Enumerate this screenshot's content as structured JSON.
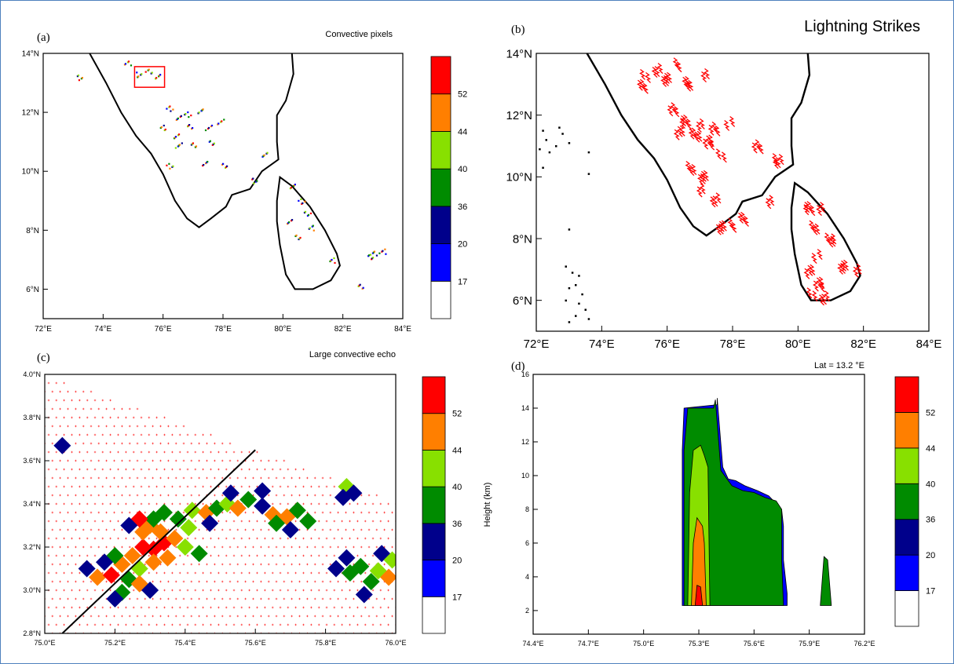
{
  "colors": {
    "frame": "#4f81bd",
    "scale": [
      "#ffffff",
      "#0000ff",
      "#00008b",
      "#008b00",
      "#88e000",
      "#ff7f00",
      "#ff0000"
    ],
    "lightning": "#ff0000",
    "gridcross": "#ff0000"
  },
  "chart_data": [
    {
      "panel": "(a)",
      "type": "heatmap",
      "title": "Convective pixels",
      "xticks": [
        "72°E",
        "74°E",
        "76°E",
        "78°E",
        "80°E",
        "82°E",
        "84°E"
      ],
      "yticks": [
        "6°N",
        "8°N",
        "10°N",
        "12°N",
        "14°N"
      ],
      "xlim": [
        72,
        84
      ],
      "ylim": [
        5,
        14
      ],
      "colorbar": {
        "labels": [
          "17",
          "20",
          "36",
          "40",
          "44",
          "52"
        ],
        "levels": [
          17,
          20,
          36,
          40,
          44,
          52
        ]
      },
      "highlight_box_lon": [
        75.05,
        76.05
      ],
      "highlight_box_lat": [
        12.85,
        13.55
      ],
      "clusters": [
        {
          "lon": 75.2,
          "lat": 13.3
        },
        {
          "lon": 75.5,
          "lat": 13.4
        },
        {
          "lon": 75.8,
          "lat": 13.25
        },
        {
          "lon": 76.2,
          "lat": 12.15
        },
        {
          "lon": 76.5,
          "lat": 11.85
        },
        {
          "lon": 76.8,
          "lat": 11.95
        },
        {
          "lon": 77.2,
          "lat": 12.05
        },
        {
          "lon": 76.0,
          "lat": 11.5
        },
        {
          "lon": 76.4,
          "lat": 11.2
        },
        {
          "lon": 76.9,
          "lat": 11.55
        },
        {
          "lon": 77.5,
          "lat": 11.5
        },
        {
          "lon": 77.6,
          "lat": 11.0
        },
        {
          "lon": 76.5,
          "lat": 10.9
        },
        {
          "lon": 77.0,
          "lat": 10.9
        },
        {
          "lon": 77.9,
          "lat": 11.7
        },
        {
          "lon": 78.0,
          "lat": 10.2
        },
        {
          "lon": 77.4,
          "lat": 10.3
        },
        {
          "lon": 79.0,
          "lat": 9.7
        },
        {
          "lon": 79.4,
          "lat": 10.6
        },
        {
          "lon": 76.2,
          "lat": 10.2
        },
        {
          "lon": 80.3,
          "lat": 9.5
        },
        {
          "lon": 80.6,
          "lat": 9.0
        },
        {
          "lon": 80.2,
          "lat": 8.3
        },
        {
          "lon": 80.8,
          "lat": 8.6
        },
        {
          "lon": 80.9,
          "lat": 8.1
        },
        {
          "lon": 80.5,
          "lat": 7.8
        },
        {
          "lon": 81.6,
          "lat": 7.0
        },
        {
          "lon": 82.6,
          "lat": 6.1
        },
        {
          "lon": 83.3,
          "lat": 7.3
        },
        {
          "lon": 82.9,
          "lat": 7.1
        },
        {
          "lon": 83.0,
          "lat": 7.25
        },
        {
          "lon": 73.2,
          "lat": 13.2
        },
        {
          "lon": 74.8,
          "lat": 13.7
        }
      ]
    },
    {
      "panel": "(b)",
      "type": "scatter",
      "title": "Lightning Strikes",
      "xticks": [
        "72°E",
        "74°E",
        "76°E",
        "78°E",
        "80°E",
        "82°E",
        "84°E"
      ],
      "yticks": [
        "6°N",
        "8°N",
        "10°N",
        "12°N",
        "14°N"
      ],
      "xlim": [
        72,
        84
      ],
      "ylim": [
        5,
        14
      ],
      "strikes": [
        {
          "lon": 75.3,
          "lat": 13.2
        },
        {
          "lon": 75.6,
          "lat": 13.4
        },
        {
          "lon": 75.9,
          "lat": 13.1
        },
        {
          "lon": 76.2,
          "lat": 13.6
        },
        {
          "lon": 75.2,
          "lat": 12.9
        },
        {
          "lon": 76.6,
          "lat": 13.0
        },
        {
          "lon": 77.1,
          "lat": 13.3
        },
        {
          "lon": 76.1,
          "lat": 12.2
        },
        {
          "lon": 76.5,
          "lat": 11.8
        },
        {
          "lon": 77.0,
          "lat": 11.6
        },
        {
          "lon": 77.4,
          "lat": 11.5
        },
        {
          "lon": 76.8,
          "lat": 11.3
        },
        {
          "lon": 77.8,
          "lat": 11.7
        },
        {
          "lon": 76.3,
          "lat": 11.4
        },
        {
          "lon": 77.2,
          "lat": 11.1
        },
        {
          "lon": 77.6,
          "lat": 10.7
        },
        {
          "lon": 76.7,
          "lat": 10.3
        },
        {
          "lon": 77.0,
          "lat": 10.0
        },
        {
          "lon": 76.9,
          "lat": 9.5
        },
        {
          "lon": 77.4,
          "lat": 9.2
        },
        {
          "lon": 77.6,
          "lat": 8.3
        },
        {
          "lon": 77.9,
          "lat": 8.4
        },
        {
          "lon": 78.3,
          "lat": 8.6
        },
        {
          "lon": 79.3,
          "lat": 10.5
        },
        {
          "lon": 79.1,
          "lat": 9.2
        },
        {
          "lon": 78.7,
          "lat": 11.0
        },
        {
          "lon": 80.3,
          "lat": 9.0
        },
        {
          "lon": 80.7,
          "lat": 8.9
        },
        {
          "lon": 80.4,
          "lat": 8.3
        },
        {
          "lon": 80.9,
          "lat": 7.9
        },
        {
          "lon": 80.5,
          "lat": 7.4
        },
        {
          "lon": 80.3,
          "lat": 6.9
        },
        {
          "lon": 80.6,
          "lat": 6.5
        },
        {
          "lon": 80.4,
          "lat": 6.2
        },
        {
          "lon": 80.7,
          "lat": 6.1
        },
        {
          "lon": 81.3,
          "lat": 7.1
        },
        {
          "lon": 81.7,
          "lat": 6.9
        }
      ],
      "islands": [
        {
          "lon": 72.2,
          "lat": 11.5
        },
        {
          "lon": 72.3,
          "lat": 11.2
        },
        {
          "lon": 72.1,
          "lat": 10.9
        },
        {
          "lon": 72.4,
          "lat": 10.8
        },
        {
          "lon": 72.6,
          "lat": 11.0
        },
        {
          "lon": 72.8,
          "lat": 11.4
        },
        {
          "lon": 72.7,
          "lat": 11.6
        },
        {
          "lon": 73.0,
          "lat": 11.1
        },
        {
          "lon": 72.2,
          "lat": 10.3
        },
        {
          "lon": 73.6,
          "lat": 10.8
        },
        {
          "lon": 73.6,
          "lat": 10.1
        },
        {
          "lon": 73.0,
          "lat": 8.3
        },
        {
          "lon": 72.9,
          "lat": 7.1
        },
        {
          "lon": 73.1,
          "lat": 6.9
        },
        {
          "lon": 73.3,
          "lat": 6.8
        },
        {
          "lon": 73.2,
          "lat": 6.5
        },
        {
          "lon": 73.4,
          "lat": 6.2
        },
        {
          "lon": 73.0,
          "lat": 6.4
        },
        {
          "lon": 72.9,
          "lat": 6.0
        },
        {
          "lon": 73.3,
          "lat": 5.9
        },
        {
          "lon": 73.5,
          "lat": 5.7
        },
        {
          "lon": 73.2,
          "lat": 5.5
        },
        {
          "lon": 73.6,
          "lat": 5.4
        },
        {
          "lon": 73.0,
          "lat": 5.3
        }
      ]
    },
    {
      "panel": "(c)",
      "type": "heatmap",
      "title": "Large convective echo",
      "xticks": [
        "75.0°E",
        "75.2°E",
        "75.4°E",
        "75.6°E",
        "75.8°E",
        "76.0°E"
      ],
      "yticks": [
        "2.8°N",
        "3.0°N",
        "3.2°N",
        "3.4°N",
        "3.6°N",
        "3.8°N",
        "4.0°N"
      ],
      "xlim": [
        75.0,
        76.0
      ],
      "ylim": [
        2.8,
        4.0
      ],
      "colorbar": {
        "labels": [
          "17",
          "20",
          "36",
          "40",
          "44",
          "52"
        ],
        "levels": [
          17,
          20,
          36,
          40,
          44,
          52
        ]
      },
      "cross_section_line": {
        "x": [
          75.05,
          75.6
        ],
        "y": [
          2.8,
          3.65
        ]
      }
    },
    {
      "panel": "(d)",
      "type": "area",
      "title": "Lat = 13.2 °E",
      "ylabel": "Height (km)",
      "xticks": [
        "74.4°E",
        "74.7°E",
        "75.0°E",
        "75.3°E",
        "75.6°E",
        "75.9°E",
        "76.2°E"
      ],
      "yticks": [
        "2",
        "4",
        "6",
        "8",
        "10",
        "12",
        "14",
        "16"
      ],
      "xlim": [
        74.4,
        76.2
      ],
      "ylim": [
        0.6,
        16
      ],
      "colorbar": {
        "labels": [
          "17",
          "20",
          "36",
          "40",
          "44",
          "52"
        ],
        "levels": [
          17,
          20,
          36,
          40,
          44,
          52
        ]
      },
      "layers": [
        {
          "level": 17,
          "x": [
            75.21,
            75.21,
            75.22,
            75.4,
            75.4,
            75.43,
            75.46,
            75.5,
            75.55,
            75.62,
            75.68,
            75.75,
            75.76,
            75.76,
            75.78,
            75.78
          ],
          "top": [
            2.3,
            11.5,
            14.0,
            14.2,
            14.6,
            10.5,
            9.8,
            9.7,
            9.4,
            9.1,
            8.8,
            8.0,
            7.0,
            5.0,
            3.0,
            2.3
          ]
        },
        {
          "level": 36,
          "x": [
            75.22,
            75.22,
            75.24,
            75.38,
            75.39,
            75.42,
            75.48,
            75.54,
            75.6,
            75.66,
            75.72,
            75.75,
            75.75,
            75.76
          ],
          "top": [
            2.3,
            11.5,
            14.0,
            14.0,
            14.5,
            10.3,
            9.4,
            9.1,
            9.0,
            8.7,
            8.5,
            8.0,
            5.0,
            2.3
          ]
        },
        {
          "level": 40,
          "x": [
            75.24,
            75.25,
            75.27,
            75.31,
            75.33,
            75.35,
            75.36
          ],
          "top": [
            2.3,
            9.0,
            11.5,
            11.8,
            11.2,
            10.5,
            2.3
          ]
        },
        {
          "level": 44,
          "x": [
            75.26,
            75.27,
            75.29,
            75.32,
            75.33,
            75.34
          ],
          "top": [
            2.3,
            6.0,
            7.5,
            7.0,
            6.0,
            2.3
          ]
        },
        {
          "level": 52,
          "x": [
            75.28,
            75.29,
            75.31,
            75.32
          ],
          "top": [
            2.3,
            3.5,
            3.4,
            2.3
          ]
        },
        {
          "level": 36,
          "x": [
            75.96,
            75.98,
            76.0,
            76.02
          ],
          "top": [
            2.3,
            5.2,
            5.0,
            2.3
          ]
        }
      ]
    }
  ]
}
